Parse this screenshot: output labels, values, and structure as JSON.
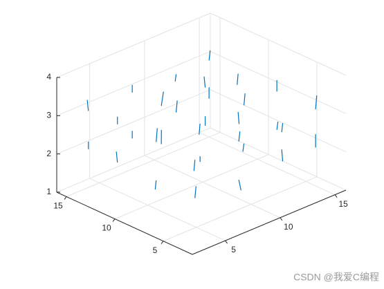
{
  "chart_data": {
    "type": "quiver3",
    "xlim": [
      2,
      16
    ],
    "ylim": [
      2,
      16
    ],
    "zlim": [
      1,
      4
    ],
    "xticks": [
      5,
      10,
      15
    ],
    "yticks": [
      5,
      10,
      15
    ],
    "zticks": [
      1,
      2,
      3,
      4
    ],
    "grid": true,
    "color": "#0072bd",
    "x": [
      4,
      4,
      4,
      4,
      8,
      8,
      8,
      8,
      12,
      12,
      12,
      12,
      15,
      15,
      15,
      15,
      4,
      4,
      4,
      4,
      8,
      8,
      8,
      8,
      12,
      12,
      12,
      12,
      15,
      15,
      15,
      15
    ],
    "y": [
      4,
      8,
      12,
      15,
      4,
      8,
      12,
      15,
      4,
      8,
      12,
      15,
      4,
      8,
      12,
      15,
      4,
      8,
      12,
      15,
      4,
      8,
      12,
      15,
      4,
      8,
      12,
      15,
      4,
      8,
      12,
      15
    ],
    "z": [
      2,
      2,
      2,
      2,
      2,
      2,
      2,
      2,
      2,
      2,
      2,
      2,
      2,
      2,
      2,
      2,
      3,
      3,
      3,
      3,
      3,
      3,
      3,
      3,
      3,
      3,
      3,
      3,
      3,
      3,
      3,
      3
    ],
    "u": [
      0.1,
      0,
      -0.1,
      0,
      0.2,
      0,
      0.1,
      0,
      0,
      -0.1,
      0,
      0.1,
      0,
      0.1,
      0,
      0,
      0,
      0.1,
      0,
      -0.1,
      0.1,
      0,
      0.2,
      0,
      0,
      0.1,
      -0.1,
      0,
      0.1,
      0,
      0,
      0.1
    ],
    "v": [
      0,
      0.1,
      0,
      0,
      0,
      0,
      0.1,
      0,
      0.1,
      0,
      0,
      0,
      0,
      0,
      -0.1,
      0,
      0.1,
      0,
      0,
      0,
      0,
      0.1,
      0,
      0,
      0.1,
      0,
      0,
      0.1,
      0,
      0,
      0.1,
      0
    ],
    "w": [
      0.3,
      -0.25,
      0.3,
      0.2,
      -0.3,
      0.15,
      0.35,
      -0.2,
      0.3,
      -0.2,
      0.25,
      0.3,
      0.35,
      0.2,
      -0.3,
      0.3,
      -0.3,
      0.35,
      0.2,
      0.3,
      0.25,
      -0.3,
      0.35,
      0.2,
      -0.25,
      0.3,
      0.3,
      -0.2,
      0.35,
      0.3,
      -0.3,
      0.25
    ],
    "watermark": "CSDN @我爱C编程"
  }
}
